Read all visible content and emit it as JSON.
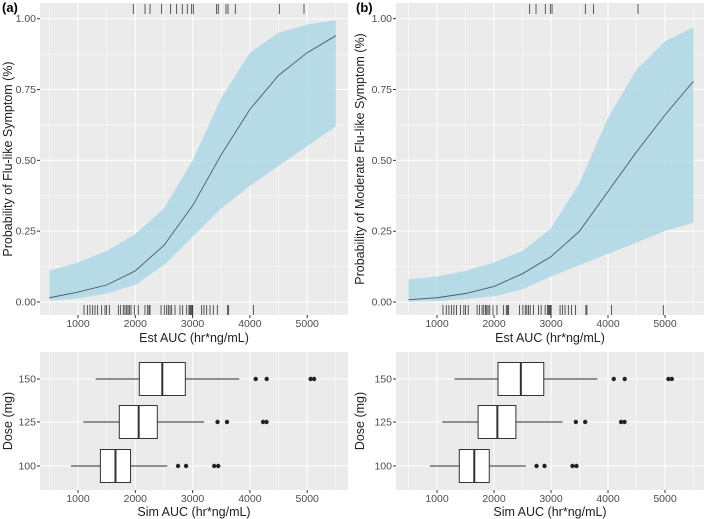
{
  "chart_data": [
    {
      "type": "line",
      "panel_label": "(a)",
      "title": "",
      "xlabel": "Est AUC (hr*ng/mL)",
      "ylabel": "Probability of Flu-like Symptom (%)",
      "xlim": [
        500,
        5500
      ],
      "ylim": [
        0,
        1
      ],
      "xticks": [
        "1000",
        "2000",
        "3000",
        "4000",
        "5000"
      ],
      "yticks": [
        "0.00",
        "0.25",
        "0.50",
        "0.75",
        "1.00"
      ],
      "x": [
        500,
        1000,
        1500,
        2000,
        2500,
        3000,
        3500,
        4000,
        4500,
        5000,
        5500
      ],
      "series": [
        {
          "name": "estimate",
          "values": [
            0.015,
            0.035,
            0.06,
            0.11,
            0.2,
            0.34,
            0.52,
            0.68,
            0.8,
            0.88,
            0.94
          ]
        },
        {
          "name": "lower",
          "values": [
            0.005,
            0.012,
            0.03,
            0.06,
            0.13,
            0.23,
            0.33,
            0.41,
            0.48,
            0.55,
            0.62
          ]
        },
        {
          "name": "upper",
          "values": [
            0.11,
            0.14,
            0.18,
            0.24,
            0.33,
            0.5,
            0.72,
            0.88,
            0.95,
            0.98,
            0.995
          ]
        }
      ],
      "rug_events": [
        1965,
        2170,
        2257,
        2460,
        2617,
        2722,
        2820,
        2907,
        2984,
        3012,
        3420,
        3448,
        3583,
        3618,
        3745,
        4513,
        4944
      ],
      "rug_no_events": [
        1105,
        1163,
        1209,
        1256,
        1297,
        1343,
        1413,
        1471,
        1500,
        1547,
        1704,
        1745,
        1791,
        1820,
        1850,
        1873,
        1896,
        1925,
        1983,
        2052,
        2169,
        2216,
        2239,
        2257,
        2449,
        2506,
        2548,
        2576,
        2606,
        2635,
        2693,
        2780,
        2827,
        2897,
        2937,
        2955,
        2972,
        2990,
        3002,
        3159,
        3199,
        3246,
        3304,
        3361,
        3431,
        3612,
        3630,
        4060
      ],
      "colors": {
        "ribbon": "#ADD8E6",
        "line": "#4a5a6a",
        "panel": "#EBEBEB"
      }
    },
    {
      "type": "line",
      "panel_label": "(b)",
      "title": "",
      "xlabel": "Est AUC (hr*ng/mL)",
      "ylabel": "Probability of Moderate Flu-like Symptom (%)",
      "xlim": [
        500,
        5500
      ],
      "ylim": [
        0,
        1
      ],
      "xticks": [
        "1000",
        "2000",
        "3000",
        "4000",
        "5000"
      ],
      "yticks": [
        "0.00",
        "0.25",
        "0.50",
        "0.75",
        "1.00"
      ],
      "x": [
        500,
        1000,
        1500,
        2000,
        2500,
        3000,
        3500,
        4000,
        4500,
        5000,
        5500
      ],
      "series": [
        {
          "name": "estimate",
          "values": [
            0.008,
            0.015,
            0.03,
            0.055,
            0.1,
            0.16,
            0.25,
            0.39,
            0.53,
            0.66,
            0.78
          ]
        },
        {
          "name": "lower",
          "values": [
            0.001,
            0.003,
            0.01,
            0.02,
            0.045,
            0.09,
            0.13,
            0.17,
            0.21,
            0.25,
            0.28
          ]
        },
        {
          "name": "upper",
          "values": [
            0.08,
            0.09,
            0.11,
            0.14,
            0.18,
            0.26,
            0.42,
            0.65,
            0.82,
            0.92,
            0.97
          ]
        }
      ],
      "rug_events": [
        2626,
        2737,
        2900,
        2988,
        3018,
        3602,
        3748,
        4526
      ],
      "rug_no_events": [
        1105,
        1163,
        1209,
        1256,
        1297,
        1343,
        1413,
        1471,
        1500,
        1547,
        1704,
        1745,
        1791,
        1820,
        1850,
        1873,
        1896,
        1925,
        1983,
        2052,
        2169,
        2216,
        2239,
        2257,
        2449,
        2506,
        2548,
        2576,
        2606,
        2635,
        2693,
        2780,
        2827,
        2897,
        2937,
        2955,
        2972,
        2990,
        3002,
        3159,
        3199,
        3246,
        3304,
        3361,
        3431,
        3612,
        3630,
        4060,
        4970
      ],
      "colors": {
        "ribbon": "#ADD8E6",
        "line": "#4a5a6a",
        "panel": "#EBEBEB"
      }
    },
    {
      "type": "box",
      "xlabel": "Sim AUC (hr*ng/mL)",
      "ylabel": "Dose (mg)",
      "xlim": [
        500,
        5500
      ],
      "xticks": [
        "1000",
        "2000",
        "3000",
        "4000",
        "5000"
      ],
      "categories": [
        "150",
        "125",
        "100"
      ],
      "boxes": [
        {
          "dose": "150",
          "whisker_low": 1308,
          "q1": 2070,
          "median": 2471,
          "q3": 2873,
          "whisker_high": 3815,
          "outliers": [
            4101,
            4293,
            5060,
            5120
          ]
        },
        {
          "dose": "125",
          "whisker_low": 1093,
          "q1": 1721,
          "median": 2059,
          "q3": 2384,
          "whisker_high": 3200,
          "outliers": [
            3435,
            3600,
            4230,
            4290
          ]
        },
        {
          "dose": "100",
          "whisker_low": 877,
          "q1": 1391,
          "median": 1654,
          "q3": 1917,
          "whisker_high": 2559,
          "outliers": [
            2746,
            2886,
            3377,
            3447
          ]
        }
      ]
    },
    {
      "type": "box",
      "xlabel": "Sim AUC (hr*ng/mL)",
      "ylabel": "Dose (mg)",
      "xlim": [
        500,
        5500
      ],
      "xticks": [
        "1000",
        "2000",
        "3000",
        "4000",
        "5000"
      ],
      "categories": [
        "150",
        "125",
        "100"
      ],
      "boxes": [
        {
          "dose": "150",
          "whisker_low": 1308,
          "q1": 2070,
          "median": 2471,
          "q3": 2873,
          "whisker_high": 3815,
          "outliers": [
            4101,
            4293,
            5060,
            5120
          ]
        },
        {
          "dose": "125",
          "whisker_low": 1093,
          "q1": 1721,
          "median": 2059,
          "q3": 2384,
          "whisker_high": 3200,
          "outliers": [
            3435,
            3600,
            4230,
            4290
          ]
        },
        {
          "dose": "100",
          "whisker_low": 877,
          "q1": 1391,
          "median": 1654,
          "q3": 1917,
          "whisker_high": 2559,
          "outliers": [
            2746,
            2886,
            3377,
            3447
          ]
        }
      ]
    }
  ]
}
